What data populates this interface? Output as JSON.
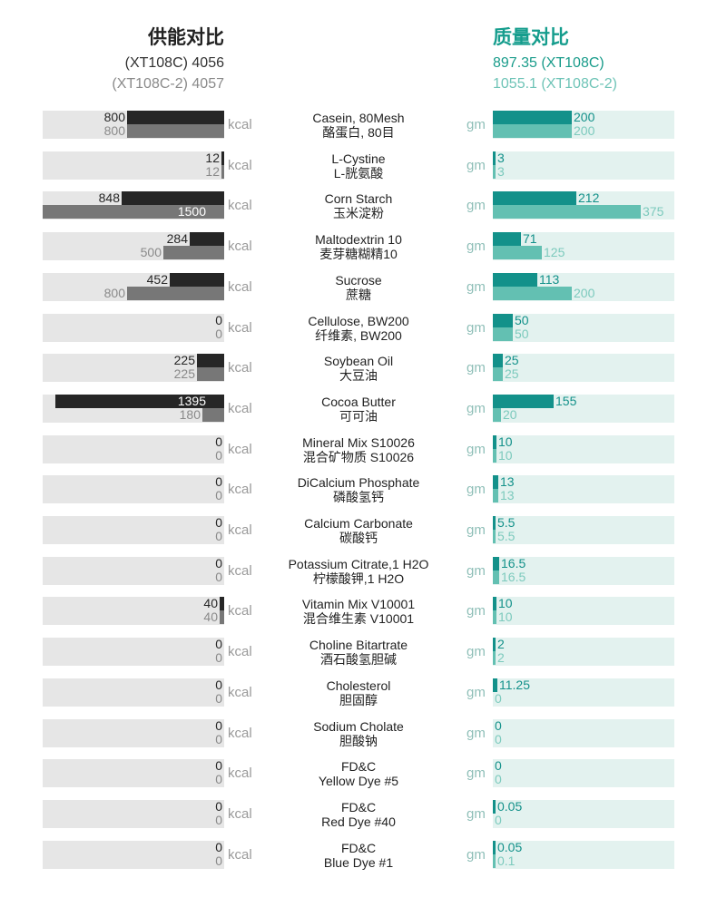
{
  "header": {
    "energy_title": "供能对比",
    "energy_s1": "(XT108C) 4056",
    "energy_s2": "(XT108C-2) 4057",
    "mass_title": "质量对比",
    "mass_s1": "897.35 (XT108C)",
    "mass_s2": "1055.1 (XT108C-2)"
  },
  "units": {
    "energy": "kcal",
    "mass": "gm"
  },
  "colors": {
    "energy_xt108c": "#262626",
    "energy_xt108c2": "#777777",
    "mass_xt108c": "#13918a",
    "mass_xt108c2": "#63c0b2"
  },
  "chart_data": {
    "type": "bar",
    "orientation": "horizontal-mirrored",
    "legend": [
      "XT108C",
      "XT108C-2"
    ],
    "energy_max": 1500,
    "mass_max": 212,
    "rows": [
      {
        "en": "Casein, 80Mesh",
        "cn": "酪蛋白, 80目",
        "k1": "800",
        "k2": "800",
        "g1": "200",
        "g2": "200"
      },
      {
        "en": "L-Cystine",
        "cn": "L-胱氨酸",
        "k1": "12",
        "k2": "12",
        "g1": "3",
        "g2": "3"
      },
      {
        "en": "Corn Starch",
        "cn": "玉米淀粉",
        "k1": "848",
        "k2": "1500",
        "g1": "212",
        "g2": "375"
      },
      {
        "en": "Maltodextrin 10",
        "cn": "麦芽糖糊精10",
        "k1": "284",
        "k2": "500",
        "g1": "71",
        "g2": "125"
      },
      {
        "en": "Sucrose",
        "cn": "蔗糖",
        "k1": "452",
        "k2": "800",
        "g1": "113",
        "g2": "200"
      },
      {
        "en": "Cellulose, BW200",
        "cn": "纤维素, BW200",
        "k1": "0",
        "k2": "0",
        "g1": "50",
        "g2": "50"
      },
      {
        "en": "Soybean Oil",
        "cn": "大豆油",
        "k1": "225",
        "k2": "225",
        "g1": "25",
        "g2": "25"
      },
      {
        "en": "Cocoa Butter",
        "cn": "可可油",
        "k1": "1395",
        "k2": "180",
        "g1": "155",
        "g2": "20"
      },
      {
        "en": "Mineral Mix S10026",
        "cn": "混合矿物质 S10026",
        "k1": "0",
        "k2": "0",
        "g1": "10",
        "g2": "10"
      },
      {
        "en": "DiCalcium Phosphate",
        "cn": "磷酸氢钙",
        "k1": "0",
        "k2": "0",
        "g1": "13",
        "g2": "13"
      },
      {
        "en": "Calcium Carbonate",
        "cn": "碳酸钙",
        "k1": "0",
        "k2": "0",
        "g1": "5.5",
        "g2": "5.5"
      },
      {
        "en": "Potassium Citrate,1 H2O",
        "cn": "柠檬酸钾,1 H2O",
        "k1": "0",
        "k2": "0",
        "g1": "16.5",
        "g2": "16.5"
      },
      {
        "en": "Vitamin Mix V10001",
        "cn": "混合维生素 V10001",
        "k1": "40",
        "k2": "40",
        "g1": "10",
        "g2": "10"
      },
      {
        "en": "Choline Bitartrate",
        "cn": "酒石酸氢胆碱",
        "k1": "0",
        "k2": "0",
        "g1": "2",
        "g2": "2"
      },
      {
        "en": "Cholesterol",
        "cn": "胆固醇",
        "k1": "0",
        "k2": "0",
        "g1": "11.25",
        "g2": "0"
      },
      {
        "en": "Sodium Cholate",
        "cn": "胆酸钠",
        "k1": "0",
        "k2": "0",
        "g1": "0",
        "g2": "0"
      },
      {
        "en": "FD&C",
        "cn": "Yellow Dye #5",
        "k1": "0",
        "k2": "0",
        "g1": "0",
        "g2": "0"
      },
      {
        "en": "FD&C",
        "cn": "Red Dye #40",
        "k1": "0",
        "k2": "0",
        "g1": "0.05",
        "g2": "0"
      },
      {
        "en": "FD&C",
        "cn": "Blue Dye #1",
        "k1": "0",
        "k2": "0",
        "g1": "0.05",
        "g2": "0.1"
      }
    ]
  }
}
